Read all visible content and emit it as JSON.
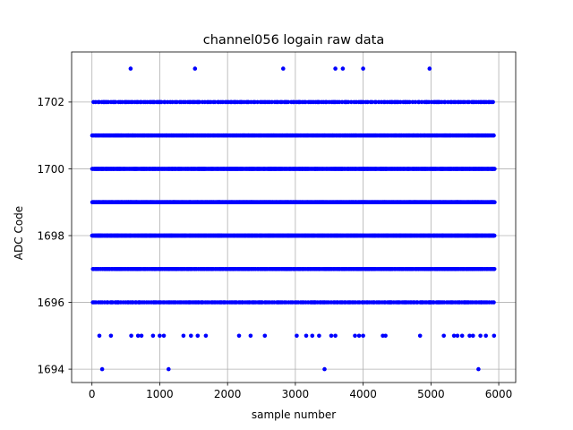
{
  "chart_data": {
    "type": "scatter",
    "title": "channel056 logain raw data",
    "xlabel": "sample number",
    "ylabel": "ADC Code",
    "xlim": [
      -300,
      6250
    ],
    "ylim": [
      1693.6,
      1703.5
    ],
    "xticks": [
      0,
      1000,
      2000,
      3000,
      4000,
      5000,
      6000
    ],
    "yticks": [
      1694,
      1696,
      1698,
      1700,
      1702
    ],
    "grid": true,
    "marker_color": "#0000ff",
    "n_samples": 5940,
    "series": [
      {
        "values_sparse": {
          "1703": [
            570,
            1520,
            2820,
            3590,
            3700,
            4000,
            4980
          ],
          "1694": [
            150,
            1130,
            3430,
            5700
          ],
          "1695": [
            110,
            280,
            580,
            680,
            730,
            900,
            1000,
            1060,
            1350,
            1460,
            1560,
            1680,
            2170,
            2340,
            2550,
            3020,
            3160,
            3250,
            3350,
            3530,
            3590,
            3880,
            3940,
            4000,
            4290,
            4330,
            4840,
            5190,
            5340,
            5390,
            5460,
            5570,
            5620,
            5730,
            5810,
            5930
          ]
        },
        "value_range_dense": [
          1696,
          1702
        ]
      }
    ]
  }
}
